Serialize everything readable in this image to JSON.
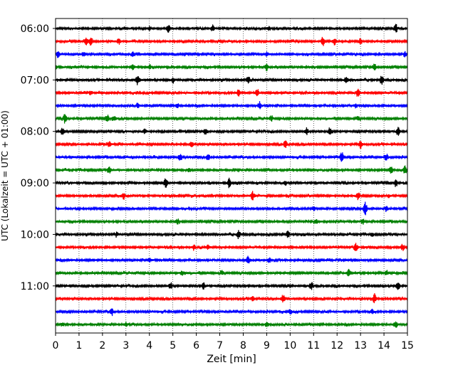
{
  "chart_data": {
    "type": "line",
    "title": "",
    "xlabel": "Zeit  [min]",
    "ylabel": "UTC (Lokalzeit = UTC + 01:00)",
    "xlim": [
      0,
      15
    ],
    "x_ticks": [
      "0",
      "1",
      "2",
      "3",
      "4",
      "5",
      "6",
      "7",
      "8",
      "9",
      "10",
      "11",
      "12",
      "13",
      "14",
      "15"
    ],
    "y_ticks": [
      "06:00",
      "07:00",
      "08:00",
      "09:00",
      "10:00",
      "11:00"
    ],
    "grid": {
      "x": "dotted",
      "y": "off"
    },
    "trace_interval_min": 15,
    "trace_colors": [
      "#000000",
      "#ff0000",
      "#0000ff",
      "#008000"
    ],
    "series": [
      {
        "start": "06:00",
        "events": [
          [
            4.0,
            0.3
          ],
          [
            4.8,
            0.6
          ],
          [
            6.7,
            0.5
          ],
          [
            9.1,
            0.3
          ],
          [
            14.5,
            0.7
          ]
        ]
      },
      {
        "start": "06:15",
        "events": [
          [
            1.3,
            0.5
          ],
          [
            1.5,
            0.6
          ],
          [
            2.7,
            0.4
          ],
          [
            11.4,
            0.7
          ],
          [
            11.9,
            0.5
          ],
          [
            13.0,
            0.4
          ]
        ]
      },
      {
        "start": "06:30",
        "events": [
          [
            0.1,
            0.5
          ],
          [
            1.2,
            0.4
          ],
          [
            3.3,
            0.3
          ],
          [
            9.0,
            0.3
          ],
          [
            14.9,
            0.4
          ]
        ]
      },
      {
        "start": "06:45",
        "events": [
          [
            0.0,
            0.3
          ],
          [
            3.3,
            0.4
          ],
          [
            4.0,
            0.3
          ],
          [
            9.0,
            0.5
          ],
          [
            13.6,
            0.5
          ]
        ]
      },
      {
        "start": "07:00",
        "events": [
          [
            3.5,
            0.8
          ],
          [
            5.0,
            0.4
          ],
          [
            8.2,
            0.5
          ],
          [
            12.4,
            0.6
          ],
          [
            13.9,
            0.8
          ]
        ]
      },
      {
        "start": "07:15",
        "events": [
          [
            1.5,
            0.3
          ],
          [
            7.8,
            0.5
          ],
          [
            8.6,
            0.6
          ],
          [
            12.9,
            0.5
          ]
        ]
      },
      {
        "start": "07:30",
        "events": [
          [
            3.5,
            0.3
          ],
          [
            5.2,
            0.3
          ],
          [
            8.7,
            0.6
          ],
          [
            12.8,
            0.3
          ]
        ]
      },
      {
        "start": "07:45",
        "events": [
          [
            0.4,
            0.7
          ],
          [
            2.2,
            0.6
          ],
          [
            2.5,
            0.4
          ],
          [
            9.2,
            0.4
          ],
          [
            12.9,
            0.3
          ]
        ]
      },
      {
        "start": "08:00",
        "events": [
          [
            0.3,
            0.6
          ],
          [
            3.8,
            0.4
          ],
          [
            6.4,
            0.5
          ],
          [
            10.7,
            0.5
          ],
          [
            11.7,
            0.6
          ],
          [
            14.6,
            0.6
          ]
        ]
      },
      {
        "start": "08:15",
        "events": [
          [
            2.3,
            0.5
          ],
          [
            5.8,
            0.4
          ],
          [
            9.8,
            0.6
          ],
          [
            13.0,
            0.6
          ]
        ]
      },
      {
        "start": "08:30",
        "events": [
          [
            5.3,
            0.5
          ],
          [
            6.5,
            0.5
          ],
          [
            12.2,
            0.9
          ],
          [
            14.1,
            0.5
          ]
        ]
      },
      {
        "start": "08:45",
        "events": [
          [
            2.3,
            0.5
          ],
          [
            5.7,
            0.3
          ],
          [
            14.3,
            0.7
          ],
          [
            14.9,
            0.6
          ]
        ]
      },
      {
        "start": "09:00",
        "events": [
          [
            4.7,
            0.9
          ],
          [
            7.4,
            0.7
          ],
          [
            9.8,
            0.3
          ],
          [
            14.5,
            0.4
          ]
        ]
      },
      {
        "start": "09:15",
        "events": [
          [
            2.9,
            0.5
          ],
          [
            8.4,
            0.6
          ],
          [
            12.9,
            0.6
          ],
          [
            14.2,
            0.3
          ]
        ]
      },
      {
        "start": "09:30",
        "events": [
          [
            11.0,
            0.3
          ],
          [
            13.2,
            1.0
          ],
          [
            14.1,
            0.4
          ]
        ]
      },
      {
        "start": "09:45",
        "events": [
          [
            5.2,
            0.4
          ],
          [
            11.1,
            0.3
          ],
          [
            13.1,
            0.4
          ]
        ]
      },
      {
        "start": "10:00",
        "events": [
          [
            2.6,
            0.3
          ],
          [
            7.8,
            0.6
          ],
          [
            9.9,
            0.5
          ],
          [
            13.5,
            0.3
          ]
        ]
      },
      {
        "start": "10:15",
        "events": [
          [
            5.9,
            0.5
          ],
          [
            6.5,
            0.3
          ],
          [
            12.8,
            0.6
          ],
          [
            14.8,
            0.5
          ]
        ]
      },
      {
        "start": "10:30",
        "events": [
          [
            4.0,
            0.3
          ],
          [
            8.2,
            0.6
          ],
          [
            9.1,
            0.4
          ],
          [
            12.8,
            0.3
          ]
        ]
      },
      {
        "start": "10:45",
        "events": [
          [
            5.4,
            0.3
          ],
          [
            7.1,
            0.3
          ],
          [
            12.5,
            0.5
          ],
          [
            14.1,
            0.4
          ]
        ]
      },
      {
        "start": "11:00",
        "events": [
          [
            4.9,
            0.5
          ],
          [
            6.3,
            0.5
          ],
          [
            10.9,
            0.6
          ],
          [
            14.6,
            0.6
          ]
        ]
      },
      {
        "start": "11:15",
        "events": [
          [
            8.4,
            0.3
          ],
          [
            9.7,
            0.6
          ],
          [
            13.6,
            0.7
          ]
        ]
      },
      {
        "start": "11:30",
        "events": [
          [
            2.4,
            0.5
          ],
          [
            10.0,
            0.4
          ],
          [
            13.5,
            0.3
          ]
        ]
      },
      {
        "start": "11:45",
        "events": [
          [
            0.3,
            0.3
          ],
          [
            3.0,
            0.4
          ],
          [
            9.0,
            0.3
          ],
          [
            14.5,
            0.6
          ]
        ]
      }
    ]
  }
}
